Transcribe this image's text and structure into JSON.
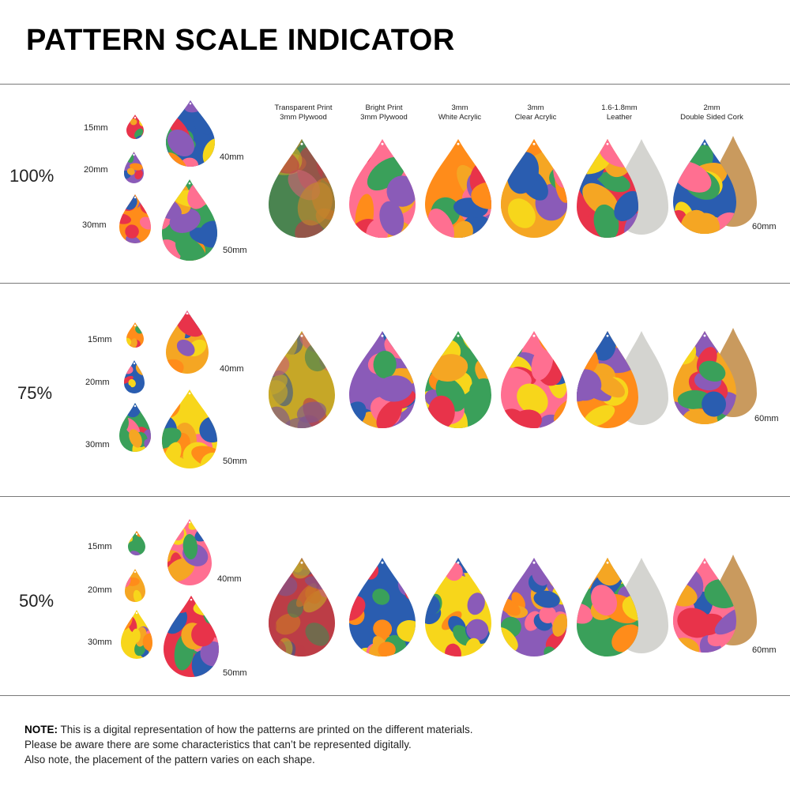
{
  "title": "PATTERN SCALE INDICATOR",
  "materials": [
    {
      "line1": "Transparent Print",
      "line2": "3mm Plywood"
    },
    {
      "line1": "Bright Print",
      "line2": "3mm Plywood"
    },
    {
      "line1": "3mm",
      "line2": "White Acrylic"
    },
    {
      "line1": "3mm",
      "line2": "Clear Acrylic"
    },
    {
      "line1": "1.6-1.8mm",
      "line2": "Leather"
    },
    {
      "line1": "2mm",
      "line2": "Double Sided Cork"
    }
  ],
  "sizes": [
    "15mm",
    "20mm",
    "30mm",
    "40mm",
    "50mm",
    "60mm"
  ],
  "rows": [
    {
      "scale": "100%"
    },
    {
      "scale": "75%"
    },
    {
      "scale": "50%"
    }
  ],
  "note": {
    "label": "NOTE:",
    "line1": "This is a digital representation of how the patterns are printed on the different materials.",
    "line2": "Please be aware there are some characteristics that can’t be represented digitally.",
    "line3": "Also note, the placement of the pattern varies on each shape."
  },
  "colors": {
    "divider": "#7a7a7a",
    "leather_back": "#d4d4d0",
    "cork_back": "#c99a5e",
    "palette": [
      "#f5a623",
      "#e8334a",
      "#2a5db0",
      "#f7d61b",
      "#8a5bb8",
      "#3aa05a",
      "#ff6f91",
      "#ff8c1a"
    ]
  }
}
